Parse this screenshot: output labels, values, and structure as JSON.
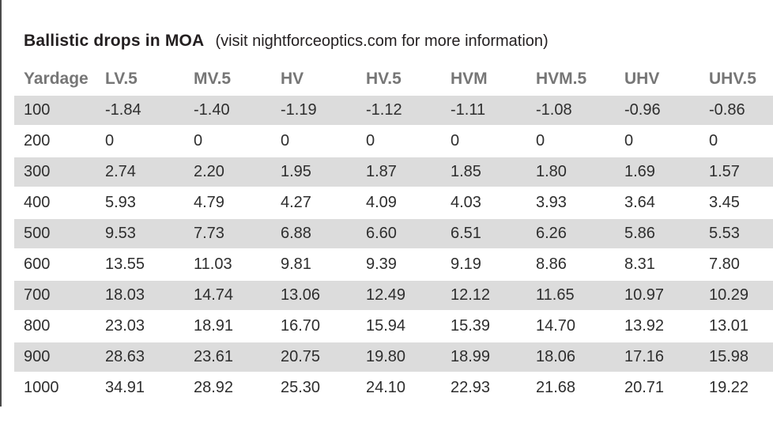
{
  "title": "Ballistic drops in MOA",
  "subtitle": "(visit nightforceoptics.com for more information)",
  "colors": {
    "stripe": "#dcdcdc",
    "header_text": "#767676",
    "body_text": "#2e2e2e",
    "title_text": "#231f20",
    "edge_line": "#4b4b4b"
  },
  "chart_data": {
    "type": "table",
    "title": "Ballistic drops in MOA",
    "columns": [
      "Yardage",
      "LV.5",
      "MV.5",
      "HV",
      "HV.5",
      "HVM",
      "HVM.5",
      "UHV",
      "UHV.5"
    ],
    "rows": [
      [
        "100",
        "-1.84",
        "-1.40",
        "-1.19",
        "-1.12",
        "-1.11",
        "-1.08",
        "-0.96",
        "-0.86"
      ],
      [
        "200",
        "0",
        "0",
        "0",
        "0",
        "0",
        "0",
        "0",
        "0"
      ],
      [
        "300",
        "2.74",
        "2.20",
        "1.95",
        "1.87",
        "1.85",
        "1.80",
        "1.69",
        "1.57"
      ],
      [
        "400",
        "5.93",
        "4.79",
        "4.27",
        "4.09",
        "4.03",
        "3.93",
        "3.64",
        "3.45"
      ],
      [
        "500",
        "9.53",
        "7.73",
        "6.88",
        "6.60",
        "6.51",
        "6.26",
        "5.86",
        "5.53"
      ],
      [
        "600",
        "13.55",
        "11.03",
        "9.81",
        "9.39",
        "9.19",
        "8.86",
        "8.31",
        "7.80"
      ],
      [
        "700",
        "18.03",
        "14.74",
        "13.06",
        "12.49",
        "12.12",
        "11.65",
        "10.97",
        "10.29"
      ],
      [
        "800",
        "23.03",
        "18.91",
        "16.70",
        "15.94",
        "15.39",
        "14.70",
        "13.92",
        "13.01"
      ],
      [
        "900",
        "28.63",
        "23.61",
        "20.75",
        "19.80",
        "18.99",
        "18.06",
        "17.16",
        "15.98"
      ],
      [
        "1000",
        "34.91",
        "28.92",
        "25.30",
        "24.10",
        "22.93",
        "21.68",
        "20.71",
        "19.22"
      ]
    ]
  }
}
